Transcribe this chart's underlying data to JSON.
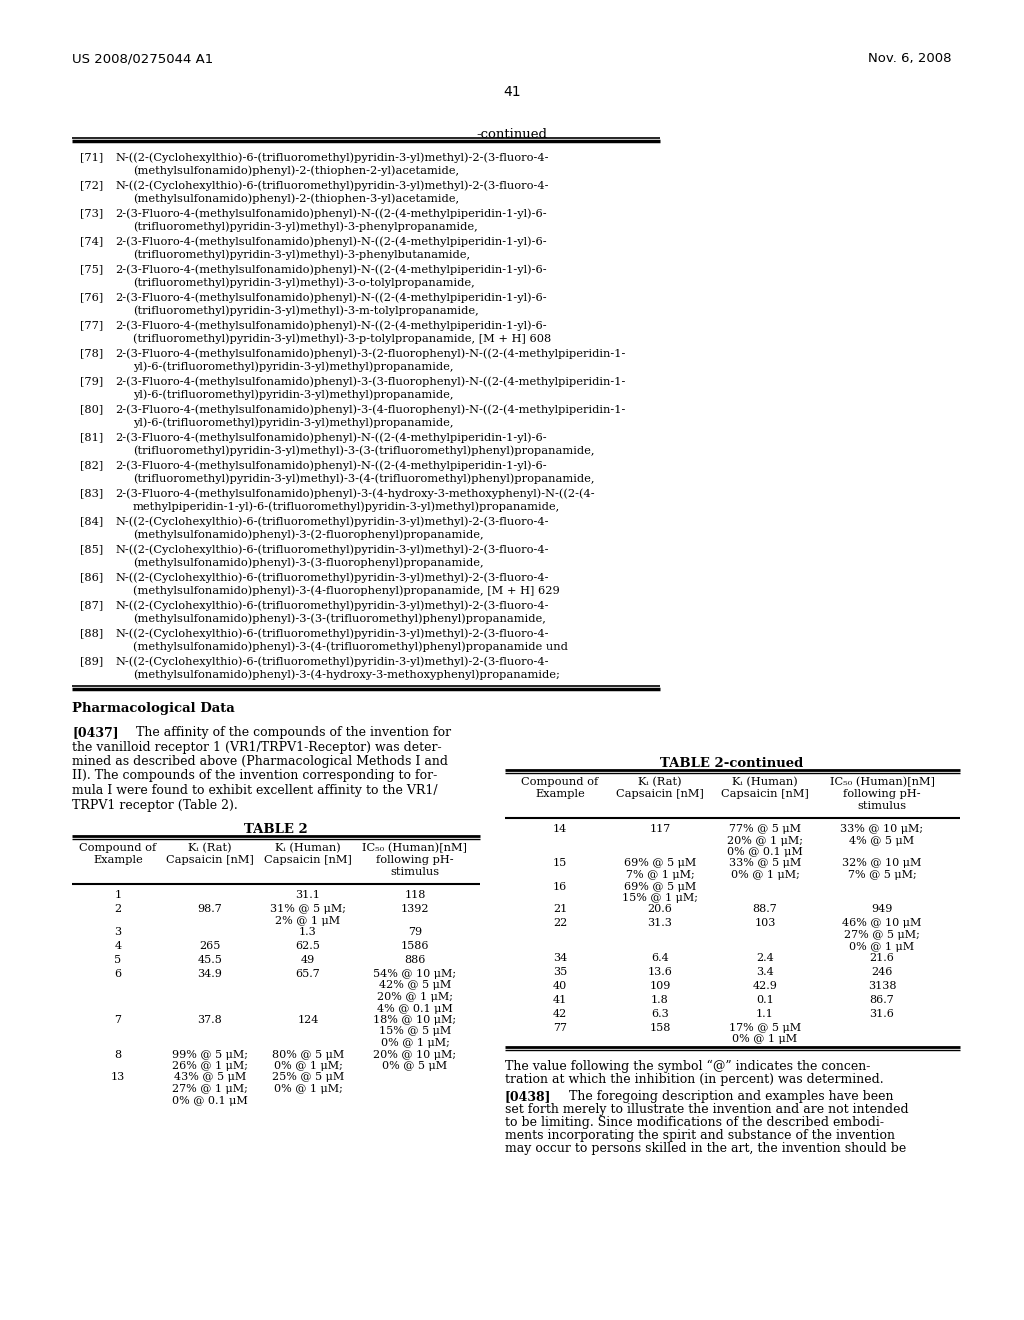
{
  "header_left": "US 2008/0275044 A1",
  "header_right": "Nov. 6, 2008",
  "page_number": "41",
  "background_color": "#ffffff",
  "text_color": "#000000",
  "compounds": [
    {
      "num": "[71]",
      "line1": "N-((2-(Cyclohexylthio)-6-(trifluoromethyl)pyridin-3-yl)methyl)-2-(3-fluoro-4-",
      "line2": "(methylsulfonamido)phenyl)-2-(thiophen-2-yl)acetamide,"
    },
    {
      "num": "[72]",
      "line1": "N-((2-(Cyclohexylthio)-6-(trifluoromethyl)pyridin-3-yl)methyl)-2-(3-fluoro-4-",
      "line2": "(methylsulfonamido)phenyl)-2-(thiophen-3-yl)acetamide,"
    },
    {
      "num": "[73]",
      "line1": "2-(3-Fluoro-4-(methylsulfonamido)phenyl)-N-((2-(4-methylpiperidin-1-yl)-6-",
      "line2": "(trifluoromethyl)pyridin-3-yl)methyl)-3-phenylpropanamide,"
    },
    {
      "num": "[74]",
      "line1": "2-(3-Fluoro-4-(methylsulfonamido)phenyl)-N-((2-(4-methylpiperidin-1-yl)-6-",
      "line2": "(trifluoromethyl)pyridin-3-yl)methyl)-3-phenylbutanamide,"
    },
    {
      "num": "[75]",
      "line1": "2-(3-Fluoro-4-(methylsulfonamido)phenyl)-N-((2-(4-methylpiperidin-1-yl)-6-",
      "line2": "(trifluoromethyl)pyridin-3-yl)methyl)-3-o-tolylpropanamide,"
    },
    {
      "num": "[76]",
      "line1": "2-(3-Fluoro-4-(methylsulfonamido)phenyl)-N-((2-(4-methylpiperidin-1-yl)-6-",
      "line2": "(trifluoromethyl)pyridin-3-yl)methyl)-3-m-tolylpropanamide,"
    },
    {
      "num": "[77]",
      "line1": "2-(3-Fluoro-4-(methylsulfonamido)phenyl)-N-((2-(4-methylpiperidin-1-yl)-6-",
      "line2": "(trifluoromethyl)pyridin-3-yl)methyl)-3-p-tolylpropanamide, [M + H] 608"
    },
    {
      "num": "[78]",
      "line1": "2-(3-Fluoro-4-(methylsulfonamido)phenyl)-3-(2-fluorophenyl)-N-((2-(4-methylpiperidin-1-",
      "line2": "yl)-6-(trifluoromethyl)pyridin-3-yl)methyl)propanamide,"
    },
    {
      "num": "[79]",
      "line1": "2-(3-Fluoro-4-(methylsulfonamido)phenyl)-3-(3-fluorophenyl)-N-((2-(4-methylpiperidin-1-",
      "line2": "yl)-6-(trifluoromethyl)pyridin-3-yl)methyl)propanamide,"
    },
    {
      "num": "[80]",
      "line1": "2-(3-Fluoro-4-(methylsulfonamido)phenyl)-3-(4-fluorophenyl)-N-((2-(4-methylpiperidin-1-",
      "line2": "yl)-6-(trifluoromethyl)pyridin-3-yl)methyl)propanamide,"
    },
    {
      "num": "[81]",
      "line1": "2-(3-Fluoro-4-(methylsulfonamido)phenyl)-N-((2-(4-methylpiperidin-1-yl)-6-",
      "line2": "(trifluoromethyl)pyridin-3-yl)methyl)-3-(3-(trifluoromethyl)phenyl)propanamide,"
    },
    {
      "num": "[82]",
      "line1": "2-(3-Fluoro-4-(methylsulfonamido)phenyl)-N-((2-(4-methylpiperidin-1-yl)-6-",
      "line2": "(trifluoromethyl)pyridin-3-yl)methyl)-3-(4-(trifluoromethyl)phenyl)propanamide,"
    },
    {
      "num": "[83]",
      "line1": "2-(3-Fluoro-4-(methylsulfonamido)phenyl)-3-(4-hydroxy-3-methoxyphenyl)-N-((2-(4-",
      "line2": "methylpiperidin-1-yl)-6-(trifluoromethyl)pyridin-3-yl)methyl)propanamide,"
    },
    {
      "num": "[84]",
      "line1": "N-((2-(Cyclohexylthio)-6-(trifluoromethyl)pyridin-3-yl)methyl)-2-(3-fluoro-4-",
      "line2": "(methylsulfonamido)phenyl)-3-(2-fluorophenyl)propanamide,"
    },
    {
      "num": "[85]",
      "line1": "N-((2-(Cyclohexylthio)-6-(trifluoromethyl)pyridin-3-yl)methyl)-2-(3-fluoro-4-",
      "line2": "(methylsulfonamido)phenyl)-3-(3-fluorophenyl)propanamide,"
    },
    {
      "num": "[86]",
      "line1": "N-((2-(Cyclohexylthio)-6-(trifluoromethyl)pyridin-3-yl)methyl)-2-(3-fluoro-4-",
      "line2": "(methylsulfonamido)phenyl)-3-(4-fluorophenyl)propanamide, [M + H] 629"
    },
    {
      "num": "[87]",
      "line1": "N-((2-(Cyclohexylthio)-6-(trifluoromethyl)pyridin-3-yl)methyl)-2-(3-fluoro-4-",
      "line2": "(methylsulfonamido)phenyl)-3-(3-(trifluoromethyl)phenyl)propanamide,"
    },
    {
      "num": "[88]",
      "line1": "N-((2-(Cyclohexylthio)-6-(trifluoromethyl)pyridin-3-yl)methyl)-2-(3-fluoro-4-",
      "line2": "(methylsulfonamido)phenyl)-3-(4-(trifluoromethyl)phenyl)propanamide und"
    },
    {
      "num": "[89]",
      "line1": "N-((2-(Cyclohexylthio)-6-(trifluoromethyl)pyridin-3-yl)methyl)-2-(3-fluoro-4-",
      "line2": "(methylsulfonamido)phenyl)-3-(4-hydroxy-3-methoxyphenyl)propanamide;"
    }
  ],
  "pharm_title": "Pharmacological Data",
  "para_0437_bold": "[0437]",
  "para_0437_text": "   The affinity of the compounds of the invention for the vanilloid receptor 1 (VR1/TRPV1-Receptor) was determined as described above (Pharmacological Methods I and II). The compounds of the invention corresponding to formula I were found to exhibit excellent affinity to the VR1/TRPV1 receptor (Table 2).",
  "t2_title": "TABLE 2",
  "t2_col1": "Compound of\nExample",
  "t2_col2": "Kᵢ (Rat)\nCapsaicin [nM]",
  "t2_col3": "Kᵢ (Human)\nCapsaicin [nM]",
  "t2_col4": "IC₅₀ (Human)[nM]\nfollowing pH-\nstimulus",
  "t2_rows": [
    [
      "1",
      "",
      "31.1",
      "118"
    ],
    [
      "2",
      "98.7",
      "31% @ 5 μM;\n2% @ 1 μM",
      "1392"
    ],
    [
      "3",
      "",
      "1.3",
      "79"
    ],
    [
      "4",
      "265",
      "62.5",
      "1586"
    ],
    [
      "5",
      "45.5",
      "49",
      "886"
    ],
    [
      "6",
      "34.9",
      "65.7",
      "54% @ 10 μM;\n42% @ 5 μM\n20% @ 1 μM;\n4% @ 0.1 μM"
    ],
    [
      "7",
      "37.8",
      "124",
      "18% @ 10 μM;\n15% @ 5 μM\n0% @ 1 μM;"
    ],
    [
      "8",
      "99% @ 5 μM;\n26% @ 1 μM;",
      "80% @ 5 μM\n0% @ 1 μM;",
      "20% @ 10 μM;\n0% @ 5 μM"
    ],
    [
      "13",
      "43% @ 5 μM\n27% @ 1 μM;\n0% @ 0.1 μM",
      "25% @ 5 μM\n0% @ 1 μM;",
      ""
    ]
  ],
  "t2c_title": "TABLE 2-continued",
  "t2c_rows": [
    [
      "14",
      "117",
      "77% @ 5 μM\n20% @ 1 μM;\n0% @ 0.1 μM",
      "33% @ 10 μM;\n4% @ 5 μM"
    ],
    [
      "15",
      "69% @ 5 μM\n7% @ 1 μM;",
      "33% @ 5 μM\n0% @ 1 μM;",
      "32% @ 10 μM\n7% @ 5 μM;"
    ],
    [
      "16",
      "69% @ 5 μM\n15% @ 1 μM;",
      "",
      ""
    ],
    [
      "21",
      "20.6",
      "88.7",
      "949"
    ],
    [
      "22",
      "31.3",
      "103",
      "46% @ 10 μM\n27% @ 5 μM;\n0% @ 1 μM"
    ],
    [
      "34",
      "6.4",
      "2.4",
      "21.6"
    ],
    [
      "35",
      "13.6",
      "3.4",
      "246"
    ],
    [
      "40",
      "109",
      "42.9",
      "3138"
    ],
    [
      "41",
      "1.8",
      "0.1",
      "86.7"
    ],
    [
      "42",
      "6.3",
      "1.1",
      "31.6"
    ],
    [
      "77",
      "158",
      "17% @ 5 μM\n0% @ 1 μM",
      ""
    ]
  ],
  "note": "The value following the symbol “@” indicates the concentration at which the inhibition (in percent) was determined.",
  "para_0438_bold": "[0438]",
  "para_0438_text": "   The foregoing description and examples have been set forth merely to illustrate the invention and are not intended to be limiting. Since modifications of the described embodiments incorporating the spirit and substance of the invention may occur to persons skilled in the art, the invention should be"
}
